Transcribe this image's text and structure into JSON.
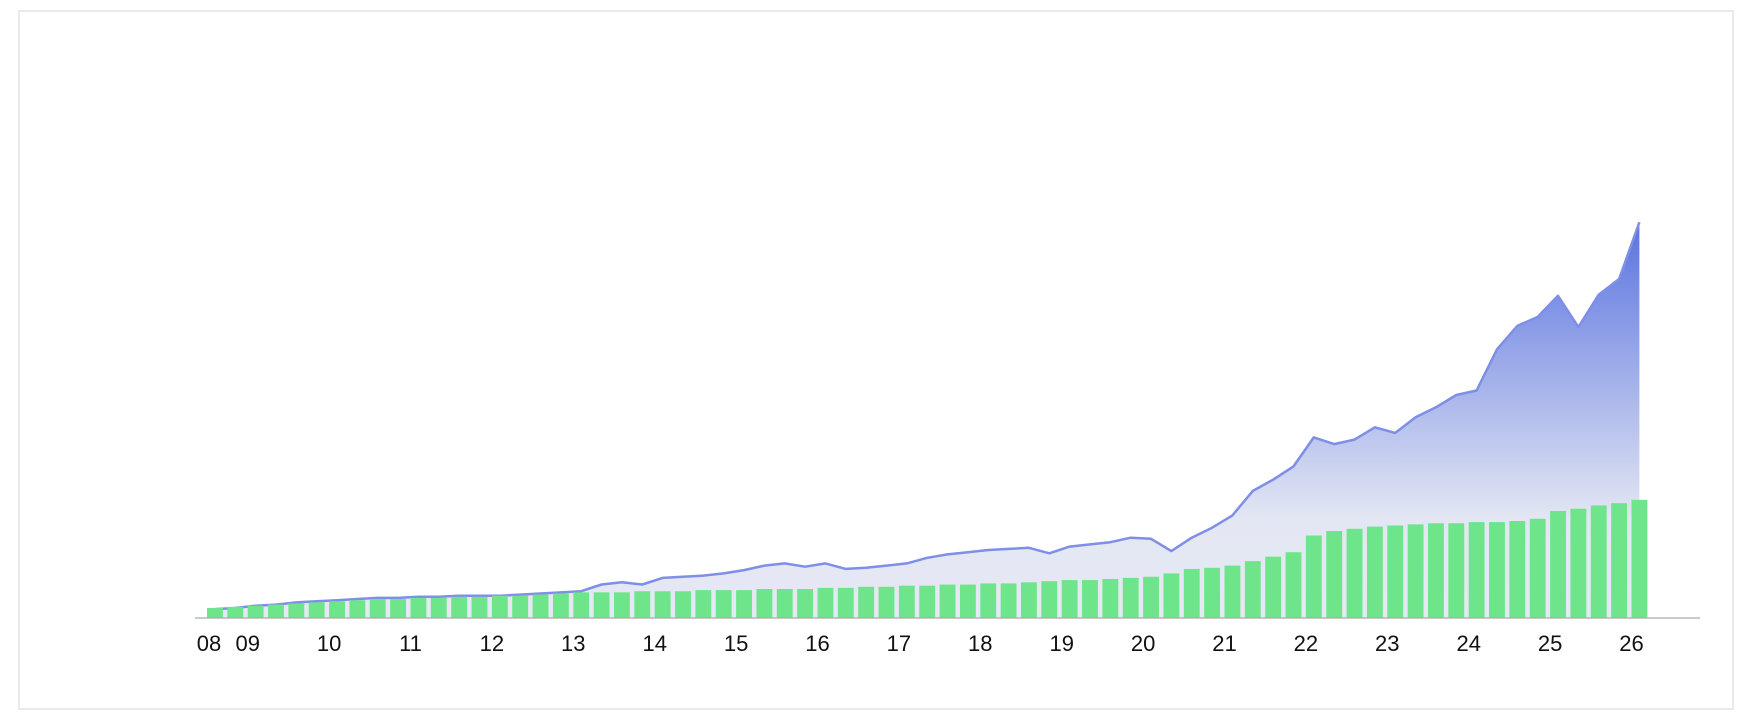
{
  "chart_data": {
    "type": "combo",
    "categories": [
      "08",
      null,
      "09",
      null,
      null,
      null,
      "10",
      null,
      null,
      null,
      "11",
      null,
      null,
      null,
      "12",
      null,
      null,
      null,
      "13",
      null,
      null,
      null,
      "14",
      null,
      null,
      null,
      "15",
      null,
      null,
      null,
      "16",
      null,
      null,
      null,
      "17",
      null,
      null,
      null,
      "18",
      null,
      null,
      null,
      "19",
      null,
      null,
      null,
      "20",
      null,
      null,
      null,
      "21",
      null,
      null,
      null,
      "22",
      null,
      null,
      null,
      "23",
      null,
      null,
      null,
      "24",
      null,
      null,
      null,
      "25",
      null,
      null,
      null,
      "26"
    ],
    "ylim": [
      0,
      400
    ],
    "series": [
      {
        "type": "area",
        "color": "#7f8ee6",
        "values": [
          8,
          9,
          11,
          12,
          14,
          15,
          16,
          17,
          18,
          18,
          19,
          19,
          20,
          20,
          20,
          21,
          22,
          23,
          24,
          30,
          32,
          30,
          36,
          37,
          38,
          40,
          43,
          47,
          49,
          46,
          49,
          44,
          45,
          47,
          49,
          54,
          57,
          59,
          61,
          62,
          63,
          58,
          64,
          66,
          68,
          72,
          71,
          60,
          72,
          81,
          92,
          114,
          124,
          136,
          162,
          156,
          160,
          171,
          166,
          180,
          189,
          200,
          204,
          241,
          262,
          270,
          289,
          261,
          290,
          304,
          355
        ]
      },
      {
        "type": "bar",
        "color": "#6ee58a",
        "values": [
          9,
          10,
          11,
          12,
          13,
          14,
          15,
          16,
          17,
          17,
          18,
          18,
          19,
          19,
          20,
          20,
          21,
          22,
          23,
          23,
          23,
          24,
          24,
          24,
          25,
          25,
          25,
          26,
          26,
          26,
          27,
          27,
          28,
          28,
          29,
          29,
          30,
          30,
          31,
          31,
          32,
          33,
          34,
          34,
          35,
          36,
          37,
          40,
          44,
          45,
          47,
          51,
          55,
          59,
          74,
          78,
          80,
          82,
          83,
          84,
          85,
          85,
          86,
          86,
          87,
          89,
          96,
          98,
          101,
          103,
          106
        ]
      }
    ]
  }
}
